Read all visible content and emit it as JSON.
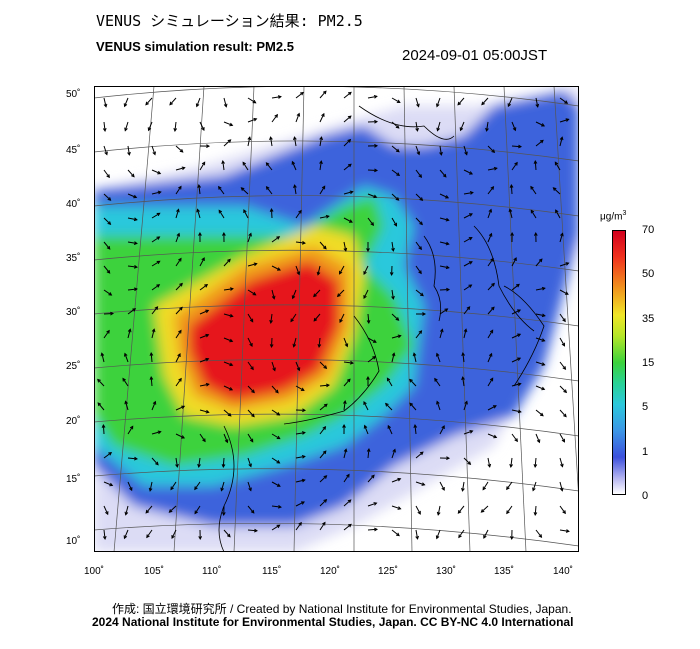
{
  "header": {
    "title_jp": "VENUS シミュレーション結果: PM2.5",
    "title_en": "VENUS simulation result: PM2.5",
    "timestamp": "2024-09-01 05:00JST"
  },
  "map": {
    "latitudes": [
      "10˚",
      "15˚",
      "20˚",
      "25˚",
      "30˚",
      "35˚",
      "40˚",
      "45˚",
      "50˚"
    ],
    "longitudes": [
      "100˚",
      "105˚",
      "110˚",
      "115˚",
      "120˚",
      "125˚",
      "130˚",
      "135˚",
      "140˚"
    ],
    "colors": {
      "background": "#ffffff",
      "low": "#dcdcf5",
      "blue": "#3c64dc",
      "cyan": "#2cc8dc",
      "green": "#3cd23c",
      "yellow": "#f0dc28",
      "orange": "#f09a1e",
      "red": "#e6141e"
    }
  },
  "colorbar": {
    "unit_prefix": "μg/m",
    "unit_exp": "3",
    "ticks": [
      "70",
      "50",
      "35",
      "15",
      "5",
      "1",
      "0"
    ]
  },
  "footer": {
    "credit_line1": "作成: 国立環境研究所 / Created by National Institute for Environmental Studies, Japan.",
    "credit_line2": "2024 National Institute for Environmental Studies, Japan. CC BY-NC 4.0 International"
  }
}
